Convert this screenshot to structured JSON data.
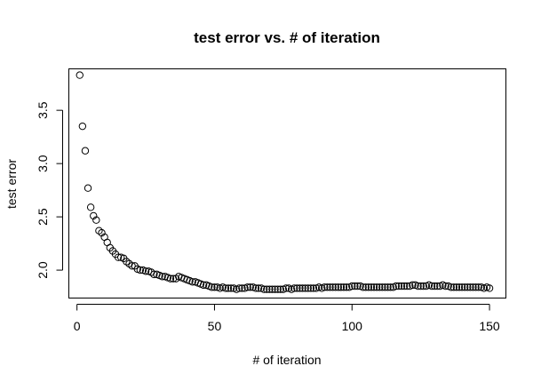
{
  "chart_data": {
    "type": "scatter",
    "title": "test error vs. # of iteration",
    "xlabel": "# of iteration",
    "ylabel": "test error",
    "xlim": [
      -2.96,
      155.96
    ],
    "ylim": [
      1.738,
      3.889
    ],
    "xticks": [
      0,
      50,
      100,
      150
    ],
    "yticks": [
      2.0,
      2.5,
      3.0,
      3.5
    ],
    "xtick_labels": [
      "0",
      "50",
      "100",
      "150"
    ],
    "ytick_labels": [
      "2.0",
      "2.5",
      "3.0",
      "3.5"
    ],
    "grid": false,
    "legend": "none",
    "marker": "open-circle",
    "series": [
      {
        "x": [
          1,
          2,
          3,
          4,
          5,
          6,
          7,
          8,
          9,
          10,
          11,
          12,
          13,
          14,
          15,
          16,
          17,
          18,
          19,
          20,
          21,
          22,
          23,
          24,
          25,
          26,
          27,
          28,
          29,
          30,
          31,
          32,
          33,
          34,
          35,
          36,
          37,
          38,
          39,
          40,
          41,
          42,
          43,
          44,
          45,
          46,
          47,
          48,
          49,
          50,
          51,
          52,
          53,
          54,
          55,
          56,
          57,
          58,
          59,
          60,
          61,
          62,
          63,
          64,
          65,
          66,
          67,
          68,
          69,
          70,
          71,
          72,
          73,
          74,
          75,
          76,
          77,
          78,
          79,
          80,
          81,
          82,
          83,
          84,
          85,
          86,
          87,
          88,
          89,
          90,
          91,
          92,
          93,
          94,
          95,
          96,
          97,
          98,
          99,
          100,
          101,
          102,
          103,
          104,
          105,
          106,
          107,
          108,
          109,
          110,
          111,
          112,
          113,
          114,
          115,
          116,
          117,
          118,
          119,
          120,
          121,
          122,
          123,
          124,
          125,
          126,
          127,
          128,
          129,
          130,
          131,
          132,
          133,
          134,
          135,
          136,
          137,
          138,
          139,
          140,
          141,
          142,
          143,
          144,
          145,
          146,
          147,
          148,
          149,
          150
        ],
        "y": [
          3.83,
          3.35,
          3.12,
          2.77,
          2.59,
          2.51,
          2.47,
          2.37,
          2.35,
          2.31,
          2.26,
          2.21,
          2.18,
          2.15,
          2.12,
          2.12,
          2.11,
          2.08,
          2.06,
          2.04,
          2.04,
          2.01,
          2.0,
          2.0,
          1.99,
          1.99,
          1.98,
          1.96,
          1.96,
          1.95,
          1.94,
          1.94,
          1.93,
          1.92,
          1.92,
          1.92,
          1.94,
          1.93,
          1.92,
          1.91,
          1.9,
          1.89,
          1.89,
          1.88,
          1.87,
          1.86,
          1.86,
          1.85,
          1.84,
          1.84,
          1.84,
          1.83,
          1.84,
          1.83,
          1.83,
          1.83,
          1.83,
          1.82,
          1.83,
          1.83,
          1.83,
          1.84,
          1.84,
          1.84,
          1.83,
          1.83,
          1.83,
          1.82,
          1.82,
          1.82,
          1.82,
          1.82,
          1.82,
          1.82,
          1.82,
          1.83,
          1.83,
          1.82,
          1.83,
          1.83,
          1.83,
          1.83,
          1.83,
          1.83,
          1.83,
          1.83,
          1.83,
          1.84,
          1.83,
          1.84,
          1.84,
          1.84,
          1.84,
          1.84,
          1.84,
          1.84,
          1.84,
          1.84,
          1.84,
          1.85,
          1.85,
          1.85,
          1.85,
          1.84,
          1.84,
          1.84,
          1.84,
          1.84,
          1.84,
          1.84,
          1.84,
          1.84,
          1.84,
          1.84,
          1.84,
          1.85,
          1.85,
          1.85,
          1.85,
          1.85,
          1.85,
          1.86,
          1.86,
          1.85,
          1.85,
          1.85,
          1.85,
          1.86,
          1.85,
          1.85,
          1.85,
          1.85,
          1.86,
          1.85,
          1.85,
          1.84,
          1.84,
          1.84,
          1.84,
          1.84,
          1.84,
          1.84,
          1.84,
          1.84,
          1.84,
          1.84,
          1.84,
          1.83,
          1.84,
          1.83
        ]
      }
    ]
  }
}
